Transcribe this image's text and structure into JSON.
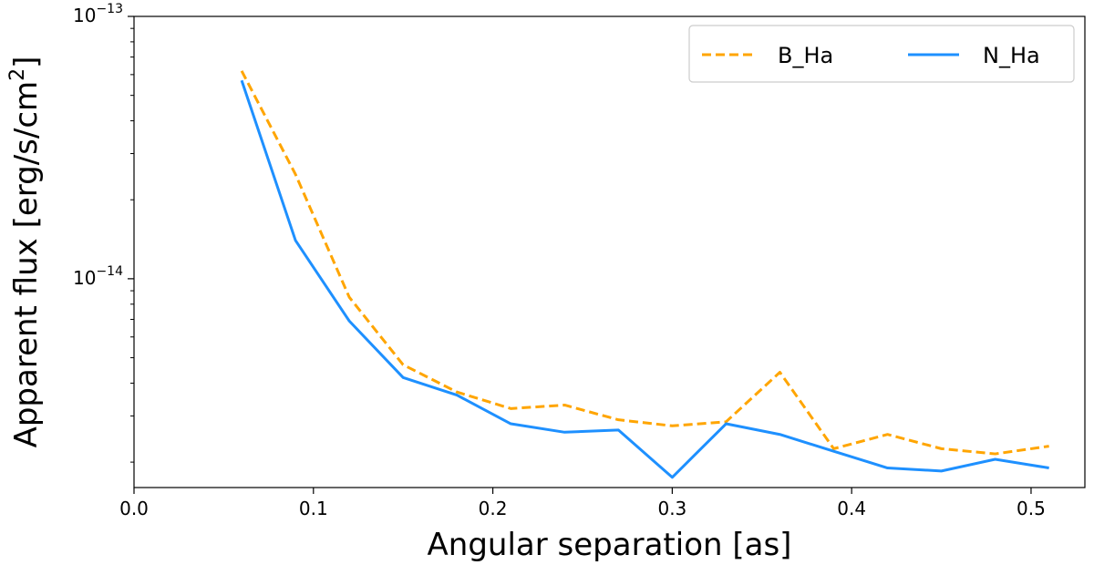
{
  "chart_data": {
    "type": "line",
    "xlabel": "Angular separation [as]",
    "ylabel": "Apparent flux [erg/s/cm²]",
    "xlim": [
      0.0,
      0.53
    ],
    "ylim": [
      1.6e-15,
      1e-13
    ],
    "yscale": "log",
    "grid": false,
    "legend_position": "top-right",
    "x_ticks": [
      0.0,
      0.1,
      0.2,
      0.3,
      0.4,
      0.5
    ],
    "x_tick_labels": [
      "0.0",
      "0.1",
      "0.2",
      "0.3",
      "0.4",
      "0.5"
    ],
    "y_ticks": [
      {
        "value": 1e-13,
        "base": "10",
        "exponent": "−13"
      },
      {
        "value": 1e-14,
        "base": "10",
        "exponent": "−14"
      }
    ],
    "x": [
      0.06,
      0.09,
      0.12,
      0.15,
      0.18,
      0.21,
      0.24,
      0.27,
      0.3,
      0.33,
      0.36,
      0.39,
      0.42,
      0.45,
      0.48,
      0.51
    ],
    "series": [
      {
        "name": "B_Ha",
        "color": "#ffa500",
        "dash": "dashed",
        "values": [
          6.2e-14,
          2.5e-14,
          8.5e-15,
          4.7e-15,
          3.7e-15,
          3.2e-15,
          3.3e-15,
          2.9e-15,
          2.75e-15,
          2.85e-15,
          4.4e-15,
          2.25e-15,
          2.55e-15,
          2.25e-15,
          2.15e-15,
          2.3e-15
        ]
      },
      {
        "name": "N_Ha",
        "color": "#1e90ff",
        "dash": "solid",
        "values": [
          5.7e-14,
          1.4e-14,
          6.9e-15,
          4.2e-15,
          3.6e-15,
          2.8e-15,
          2.6e-15,
          2.65e-15,
          1.75e-15,
          2.8e-15,
          2.55e-15,
          2.2e-15,
          1.9e-15,
          1.85e-15,
          2.05e-15,
          1.9e-15
        ]
      }
    ]
  }
}
